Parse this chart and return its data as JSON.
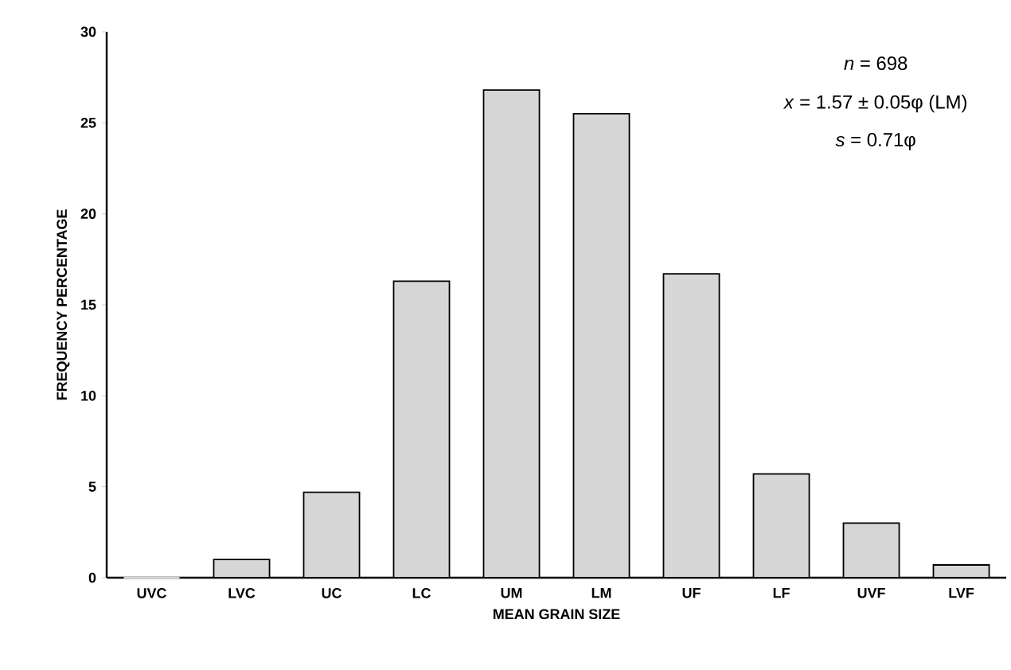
{
  "chart_data": {
    "type": "bar",
    "xlabel": "MEAN GRAIN SIZE",
    "ylabel": "FREQUENCY PERCENTAGE",
    "categories": [
      "UVC",
      "LVC",
      "UC",
      "LC",
      "UM",
      "LM",
      "UF",
      "LF",
      "UVF",
      "LVF"
    ],
    "values": [
      0,
      1.0,
      4.7,
      16.3,
      26.8,
      25.5,
      16.7,
      5.7,
      3.0,
      0.7
    ],
    "color": "#d6d6d6",
    "ylim": [
      0,
      30
    ],
    "yticks": [
      0,
      5,
      10,
      15,
      20,
      25,
      30
    ],
    "annotations": [
      "*n* = 698",
      "*x* = 1.57 ± 0.05φ (LM)",
      "*s* = 0.71φ"
    ]
  }
}
